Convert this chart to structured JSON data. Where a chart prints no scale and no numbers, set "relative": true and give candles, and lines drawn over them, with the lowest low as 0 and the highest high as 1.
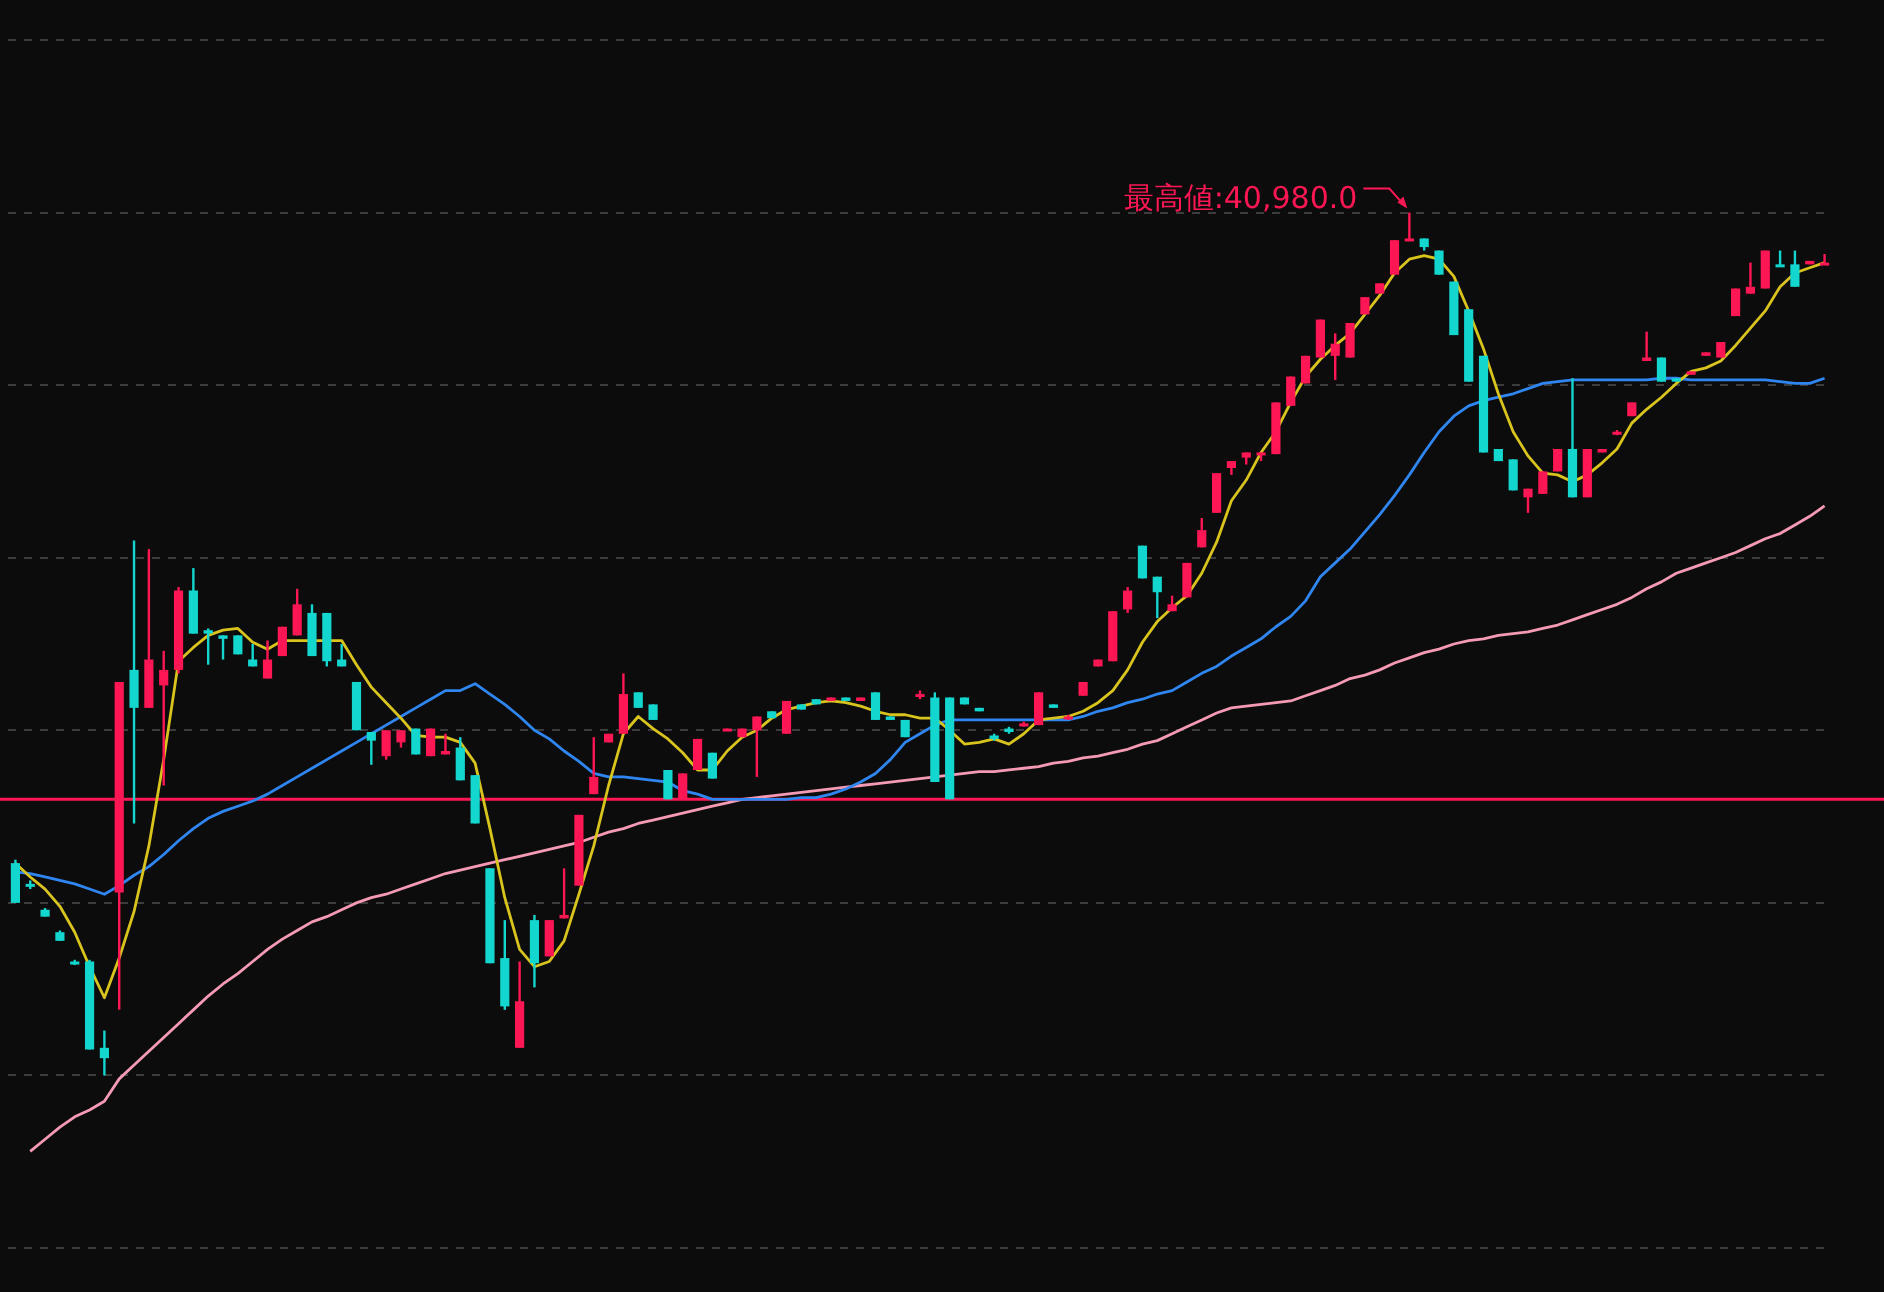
{
  "chart_data": {
    "type": "candlestick",
    "relative": true,
    "grid": "y",
    "categories": [
      null,
      null,
      null,
      null,
      null,
      null,
      null,
      null,
      null,
      null,
      null,
      null,
      null,
      null,
      null,
      null,
      null,
      null,
      null,
      null,
      null,
      null,
      null,
      null,
      null,
      null,
      null,
      null,
      null,
      null,
      null,
      null,
      null,
      null,
      null,
      null,
      null,
      null,
      null,
      null,
      null,
      null,
      null,
      null,
      null,
      null,
      null,
      null,
      null,
      null,
      null,
      null,
      null,
      null,
      null,
      null,
      null,
      null,
      null,
      null,
      null,
      null,
      null,
      null,
      null,
      null,
      null,
      null,
      null,
      null,
      null,
      null,
      null,
      null,
      null,
      null,
      null,
      null,
      null,
      null,
      null,
      null,
      null,
      null,
      null,
      null,
      null,
      null,
      null,
      null,
      null,
      null,
      null,
      null,
      null,
      null,
      null,
      null,
      null,
      null,
      null,
      null,
      null,
      null,
      null,
      null,
      null,
      null,
      null,
      null,
      null,
      null,
      null,
      null,
      null,
      null,
      null,
      null,
      null,
      null,
      null,
      null,
      null
    ],
    "ohlc": [
      [
        0.246,
        0.25,
        0.2,
        0.2
      ],
      [
        0.222,
        0.226,
        0.216,
        0.22
      ],
      [
        0.192,
        0.194,
        0.184,
        0.184
      ],
      [
        0.166,
        0.168,
        0.156,
        0.156
      ],
      [
        0.132,
        0.134,
        0.128,
        0.13
      ],
      [
        0.132,
        0.134,
        0.03,
        0.03
      ],
      [
        0.032,
        0.052,
        0,
        0.02
      ],
      [
        0.212,
        0.456,
        0.076,
        0.456
      ],
      [
        0.47,
        0.62,
        0.292,
        0.426
      ],
      [
        0.426,
        0.61,
        0.426,
        0.482
      ],
      [
        0.452,
        0.492,
        0.336,
        0.47
      ],
      [
        0.47,
        0.566,
        0.466,
        0.562
      ],
      [
        0.562,
        0.588,
        0.512,
        0.512
      ],
      [
        0.516,
        0.518,
        0.476,
        0.512
      ],
      [
        0.51,
        0.51,
        0.482,
        0.506
      ],
      [
        0.51,
        0.51,
        0.488,
        0.488
      ],
      [
        0.482,
        0.5,
        0.474,
        0.474
      ],
      [
        0.46,
        0.504,
        0.46,
        0.482
      ],
      [
        0.486,
        0.52,
        0.486,
        0.52
      ],
      [
        0.51,
        0.564,
        0.51,
        0.546
      ],
      [
        0.536,
        0.546,
        0.486,
        0.486
      ],
      [
        0.536,
        0.536,
        0.474,
        0.48
      ],
      [
        0.482,
        0.5,
        0.474,
        0.474
      ],
      [
        0.456,
        0.456,
        0.4,
        0.4
      ],
      [
        0.398,
        0.398,
        0.36,
        0.388
      ],
      [
        0.37,
        0.4,
        0.366,
        0.4
      ],
      [
        0.386,
        0.4,
        0.38,
        0.4
      ],
      [
        0.402,
        0.402,
        0.372,
        0.372
      ],
      [
        0.37,
        0.402,
        0.37,
        0.402
      ],
      [
        0.372,
        0.396,
        0.372,
        0.376
      ],
      [
        0.38,
        0.392,
        0.342,
        0.342
      ],
      [
        0.348,
        0.348,
        0.292,
        0.292
      ],
      [
        0.24,
        0.24,
        0.13,
        0.13
      ],
      [
        0.136,
        0.18,
        0.076,
        0.08
      ],
      [
        0.032,
        0.132,
        0.032,
        0.086
      ],
      [
        0.18,
        0.186,
        0.102,
        0.13
      ],
      [
        0.138,
        0.18,
        0.138,
        0.18
      ],
      [
        0.182,
        0.24,
        0.182,
        0.186
      ],
      [
        0.22,
        0.302,
        0.22,
        0.302
      ],
      [
        0.326,
        0.392,
        0.326,
        0.346
      ],
      [
        0.386,
        0.396,
        0.386,
        0.396
      ],
      [
        0.396,
        0.466,
        0.396,
        0.442
      ],
      [
        0.444,
        0.444,
        0.426,
        0.426
      ],
      [
        0.43,
        0.43,
        0.412,
        0.412
      ],
      [
        0.354,
        0.354,
        0.32,
        0.32
      ],
      [
        0.32,
        0.35,
        0.32,
        0.35
      ],
      [
        0.354,
        0.39,
        0.354,
        0.39
      ],
      [
        0.374,
        0.374,
        0.344,
        0.344
      ],
      [
        0.4,
        0.402,
        0.4,
        0.402
      ],
      [
        0.392,
        0.402,
        0.392,
        0.402
      ],
      [
        0.4,
        0.416,
        0.346,
        0.416
      ],
      [
        0.422,
        0.422,
        0.414,
        0.414
      ],
      [
        0.396,
        0.434,
        0.396,
        0.434
      ],
      [
        0.43,
        0.43,
        0.424,
        0.424
      ],
      [
        0.436,
        0.436,
        0.43,
        0.43
      ],
      [
        0.434,
        0.438,
        0.434,
        0.438
      ],
      [
        0.438,
        0.438,
        0.434,
        0.434
      ],
      [
        0.434,
        0.438,
        0.434,
        0.438
      ],
      [
        0.444,
        0.444,
        0.412,
        0.412
      ],
      [
        0.416,
        0.416,
        0.412,
        0.412
      ],
      [
        0.412,
        0.412,
        0.392,
        0.392
      ],
      [
        0.44,
        0.446,
        0.436,
        0.442
      ],
      [
        0.438,
        0.444,
        0.34,
        0.34
      ],
      [
        0.438,
        0.438,
        0.32,
        0.32
      ],
      [
        0.438,
        0.438,
        0.43,
        0.43
      ],
      [
        0.426,
        0.426,
        0.422,
        0.422
      ],
      [
        0.394,
        0.396,
        0.388,
        0.39
      ],
      [
        0.402,
        0.404,
        0.396,
        0.398
      ],
      [
        0.406,
        0.41,
        0.404,
        0.408
      ],
      [
        0.406,
        0.444,
        0.406,
        0.444
      ],
      [
        0.43,
        0.43,
        0.426,
        0.426
      ],
      [
        0.414,
        0.418,
        0.412,
        0.416
      ],
      [
        0.44,
        0.456,
        0.44,
        0.456
      ],
      [
        0.474,
        0.482,
        0.474,
        0.482
      ],
      [
        0.48,
        0.538,
        0.48,
        0.538
      ],
      [
        0.54,
        0.566,
        0.536,
        0.562
      ],
      [
        0.614,
        0.614,
        0.576,
        0.576
      ],
      [
        0.578,
        0.578,
        0.53,
        0.56
      ],
      [
        0.538,
        0.556,
        0.538,
        0.546
      ],
      [
        0.554,
        0.594,
        0.554,
        0.594
      ],
      [
        0.612,
        0.646,
        0.612,
        0.632
      ],
      [
        0.652,
        0.698,
        0.652,
        0.698
      ],
      [
        0.704,
        0.712,
        0.696,
        0.712
      ],
      [
        0.716,
        0.722,
        0.708,
        0.722
      ],
      [
        0.72,
        0.722,
        0.712,
        0.722
      ],
      [
        0.72,
        0.78,
        0.72,
        0.78
      ],
      [
        0.776,
        0.81,
        0.776,
        0.81
      ],
      [
        0.802,
        0.834,
        0.802,
        0.834
      ],
      [
        0.832,
        0.876,
        0.832,
        0.876
      ],
      [
        0.834,
        0.86,
        0.806,
        0.848
      ],
      [
        0.832,
        0.872,
        0.832,
        0.872
      ],
      [
        0.882,
        0.902,
        0.882,
        0.902
      ],
      [
        0.906,
        0.918,
        0.906,
        0.918
      ],
      [
        0.928,
        0.968,
        0.928,
        0.968
      ],
      [
        0.968,
        1,
        0.968,
        0.97
      ],
      [
        0.97,
        0.97,
        0.956,
        0.96
      ],
      [
        0.956,
        0.956,
        0.928,
        0.928
      ],
      [
        0.92,
        0.92,
        0.858,
        0.858
      ],
      [
        0.888,
        0.888,
        0.804,
        0.804
      ],
      [
        0.834,
        0.834,
        0.722,
        0.722
      ],
      [
        0.726,
        0.726,
        0.712,
        0.712
      ],
      [
        0.714,
        0.714,
        0.678,
        0.678
      ],
      [
        0.67,
        0.68,
        0.652,
        0.68
      ],
      [
        0.674,
        0.7,
        0.674,
        0.7
      ],
      [
        0.7,
        0.726,
        0.7,
        0.726
      ],
      [
        0.726,
        0.808,
        0.67,
        0.67
      ],
      [
        0.67,
        0.726,
        0.67,
        0.726
      ],
      [
        0.722,
        0.726,
        0.722,
        0.726
      ],
      [
        0.744,
        0.748,
        0.742,
        0.746
      ],
      [
        0.764,
        0.78,
        0.764,
        0.78
      ],
      [
        0.828,
        0.862,
        0.828,
        0.832
      ],
      [
        0.832,
        0.832,
        0.804,
        0.804
      ],
      [
        0.808,
        0.808,
        0.804,
        0.804
      ],
      [
        0.812,
        0.816,
        0.812,
        0.816
      ],
      [
        0.834,
        0.838,
        0.834,
        0.838
      ],
      [
        0.832,
        0.85,
        0.832,
        0.85
      ],
      [
        0.88,
        0.912,
        0.88,
        0.912
      ],
      [
        0.906,
        0.942,
        0.906,
        0.914
      ],
      [
        0.912,
        0.956,
        0.912,
        0.956
      ],
      [
        0.94,
        0.956,
        0.938,
        0.938
      ],
      [
        0.94,
        0.956,
        0.914,
        0.914
      ],
      [
        0.94,
        0.944,
        0.94,
        0.944
      ],
      [
        0.94,
        0.952,
        0.94,
        0.942
      ]
    ],
    "colors": [
      "#13d6cf",
      "#13d6cf",
      "#13d6cf",
      "#13d6cf",
      "#13d6cf",
      "#13d6cf",
      "#13d6cf",
      "#ff1654",
      "#13d6cf",
      "#ff1654",
      "#ff1654",
      "#ff1654",
      "#13d6cf",
      "#13d6cf",
      "#13d6cf",
      "#13d6cf",
      "#13d6cf",
      "#ff1654",
      "#ff1654",
      "#ff1654",
      "#13d6cf",
      "#13d6cf",
      "#13d6cf",
      "#13d6cf",
      "#13d6cf",
      "#ff1654",
      "#ff1654",
      "#13d6cf",
      "#ff1654",
      "#ff1654",
      "#13d6cf",
      "#13d6cf",
      "#13d6cf",
      "#13d6cf",
      "#ff1654",
      "#13d6cf",
      "#ff1654",
      "#ff1654",
      "#ff1654",
      "#ff1654",
      "#ff1654",
      "#ff1654",
      "#13d6cf",
      "#13d6cf",
      "#13d6cf",
      "#ff1654",
      "#ff1654",
      "#13d6cf",
      "#ff1654",
      "#ff1654",
      "#ff1654",
      "#13d6cf",
      "#ff1654",
      "#13d6cf",
      "#13d6cf",
      "#ff1654",
      "#13d6cf",
      "#ff1654",
      "#13d6cf",
      "#13d6cf",
      "#13d6cf",
      "#ff1654",
      "#13d6cf",
      "#13d6cf",
      "#13d6cf",
      "#13d6cf",
      "#13d6cf",
      "#13d6cf",
      "#ff1654",
      "#ff1654",
      "#13d6cf",
      "#ff1654",
      "#ff1654",
      "#ff1654",
      "#ff1654",
      "#ff1654",
      "#13d6cf",
      "#13d6cf",
      "#ff1654",
      "#ff1654",
      "#ff1654",
      "#ff1654",
      "#ff1654",
      "#ff1654",
      "#ff1654",
      "#ff1654",
      "#ff1654",
      "#ff1654",
      "#ff1654",
      "#ff1654",
      "#ff1654",
      "#ff1654",
      "#ff1654",
      "#ff1654",
      "#ff1654",
      "#13d6cf",
      "#13d6cf",
      "#13d6cf",
      "#13d6cf",
      "#13d6cf",
      "#13d6cf",
      "#13d6cf",
      "#ff1654",
      "#ff1654",
      "#ff1654",
      "#13d6cf",
      "#ff1654",
      "#ff1654",
      "#ff1654",
      "#ff1654",
      "#ff1654",
      "#13d6cf",
      "#13d6cf",
      "#ff1654",
      "#ff1654",
      "#ff1654",
      "#ff1654",
      "#ff1654",
      "#ff1654",
      "#13d6cf",
      "#13d6cf",
      "#ff1654",
      "#ff1654"
    ],
    "series": [
      {
        "type": "line",
        "color": "#d8c41c",
        "values": [
          0.246,
          0.23,
          0.216,
          0.196,
          0.166,
          0.126,
          0.09,
          0.136,
          0.19,
          0.266,
          0.366,
          0.48,
          0.496,
          0.51,
          0.516,
          0.518,
          0.502,
          0.494,
          0.504,
          0.504,
          0.504,
          0.504,
          0.504,
          0.476,
          0.45,
          0.432,
          0.414,
          0.394,
          0.392,
          0.392,
          0.386,
          0.362,
          0.286,
          0.206,
          0.146,
          0.126,
          0.132,
          0.156,
          0.21,
          0.266,
          0.336,
          0.396,
          0.416,
          0.402,
          0.39,
          0.374,
          0.354,
          0.354,
          0.376,
          0.392,
          0.4,
          0.414,
          0.424,
          0.428,
          0.432,
          0.434,
          0.432,
          0.428,
          0.422,
          0.418,
          0.418,
          0.414,
          0.414,
          0.4,
          0.384,
          0.386,
          0.39,
          0.384,
          0.396,
          0.412,
          0.414,
          0.416,
          0.422,
          0.432,
          0.446,
          0.47,
          0.502,
          0.526,
          0.542,
          0.556,
          0.582,
          0.618,
          0.666,
          0.69,
          0.722,
          0.746,
          0.78,
          0.81,
          0.83,
          0.846,
          0.86,
          0.882,
          0.904,
          0.93,
          0.946,
          0.95,
          0.946,
          0.926,
          0.886,
          0.842,
          0.79,
          0.746,
          0.718,
          0.698,
          0.696,
          0.688,
          0.696,
          0.71,
          0.726,
          0.756,
          0.772,
          0.786,
          0.802,
          0.816,
          0.82,
          0.828,
          0.846,
          0.866,
          0.886,
          0.914,
          0.93,
          0.936,
          0.942
        ]
      },
      {
        "type": "line",
        "color": "#2f86f0",
        "values": [
          0.236,
          0.234,
          0.23,
          0.226,
          0.222,
          0.216,
          0.21,
          0.22,
          0.232,
          0.242,
          0.256,
          0.272,
          0.286,
          0.298,
          0.306,
          0.312,
          0.318,
          0.326,
          0.336,
          0.346,
          0.356,
          0.366,
          0.376,
          0.386,
          0.396,
          0.406,
          0.416,
          0.426,
          0.436,
          0.446,
          0.446,
          0.454,
          0.442,
          0.43,
          0.416,
          0.4,
          0.39,
          0.376,
          0.364,
          0.35,
          0.346,
          0.346,
          0.344,
          0.342,
          0.34,
          0.33,
          0.326,
          0.32,
          0.32,
          0.32,
          0.32,
          0.32,
          0.32,
          0.322,
          0.322,
          0.326,
          0.332,
          0.34,
          0.35,
          0.366,
          0.386,
          0.396,
          0.406,
          0.412,
          0.412,
          0.412,
          0.412,
          0.412,
          0.412,
          0.412,
          0.412,
          0.412,
          0.416,
          0.422,
          0.426,
          0.432,
          0.436,
          0.442,
          0.446,
          0.456,
          0.466,
          0.474,
          0.486,
          0.496,
          0.506,
          0.52,
          0.532,
          0.55,
          0.578,
          0.594,
          0.61,
          0.63,
          0.65,
          0.672,
          0.696,
          0.722,
          0.746,
          0.764,
          0.776,
          0.782,
          0.786,
          0.79,
          0.796,
          0.802,
          0.804,
          0.806,
          0.806,
          0.806,
          0.806,
          0.806,
          0.806,
          0.808,
          0.808,
          0.806,
          0.806,
          0.806,
          0.806,
          0.806,
          0.806,
          0.804,
          0.802,
          0.802,
          0.808
        ]
      },
      {
        "type": "line",
        "color": "#f59ab5",
        "values": [
          null,
          -0.088,
          -0.074,
          -0.06,
          -0.048,
          -0.04,
          -0.03,
          -0.004,
          0.012,
          0.028,
          0.044,
          0.06,
          0.076,
          0.092,
          0.106,
          0.118,
          0.132,
          0.146,
          0.158,
          0.168,
          0.178,
          0.184,
          0.192,
          0.2,
          0.206,
          0.21,
          0.216,
          0.222,
          0.228,
          0.234,
          0.238,
          0.242,
          0.246,
          0.25,
          0.254,
          0.258,
          0.262,
          0.266,
          0.27,
          0.276,
          0.282,
          0.286,
          0.292,
          0.296,
          0.3,
          0.304,
          0.308,
          0.312,
          0.316,
          0.32,
          0.322,
          0.324,
          0.326,
          0.328,
          0.33,
          0.332,
          0.334,
          0.336,
          0.338,
          0.34,
          0.342,
          0.344,
          0.346,
          0.348,
          0.35,
          0.352,
          0.352,
          0.354,
          0.356,
          0.358,
          0.362,
          0.364,
          0.368,
          0.37,
          0.374,
          0.378,
          0.384,
          0.388,
          0.396,
          0.404,
          0.412,
          0.42,
          0.426,
          0.428,
          0.43,
          0.432,
          0.434,
          0.44,
          0.446,
          0.452,
          0.46,
          0.464,
          0.47,
          0.478,
          0.484,
          0.49,
          0.494,
          0.5,
          0.504,
          0.506,
          0.51,
          0.512,
          0.514,
          0.518,
          0.522,
          0.528,
          0.534,
          0.54,
          0.546,
          0.554,
          0.564,
          0.572,
          0.582,
          0.588,
          0.594,
          0.6,
          0.606,
          0.614,
          0.622,
          0.628,
          0.638,
          0.648,
          0.66
        ]
      }
    ],
    "ref_lines": [
      {
        "axis": "y",
        "value": 0.32,
        "color": "#ff1654"
      }
    ],
    "annotations": [
      "最高値:40,980.0"
    ]
  }
}
